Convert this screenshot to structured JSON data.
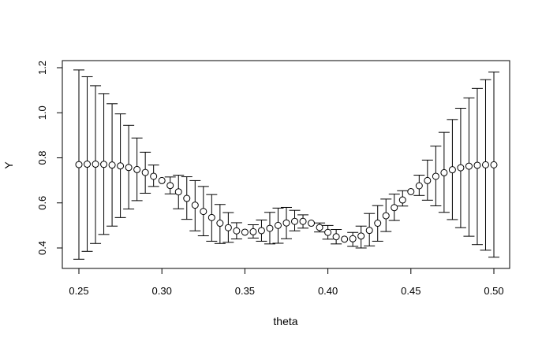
{
  "chart_data": {
    "type": "scatter",
    "title": "",
    "xlabel": "theta",
    "ylabel": "Y",
    "xlim": [
      0.25,
      0.5
    ],
    "ylim": [
      0.3,
      1.2
    ],
    "grid": false,
    "legend": "none",
    "xticks": [
      0.25,
      0.3,
      0.35,
      0.4,
      0.45,
      0.5
    ],
    "xtick_labels": [
      "0.25",
      "0.30",
      "0.35",
      "0.40",
      "0.45",
      "0.50"
    ],
    "yticks": [
      0.4,
      0.6,
      0.8,
      1.0,
      1.2
    ],
    "ytick_labels": [
      "0.4",
      "0.6",
      "0.8",
      "1.0",
      "1.2"
    ],
    "colors": {
      "marks": "#000000",
      "background": "#ffffff"
    },
    "points": [
      {
        "x": 0.25,
        "y": 0.77,
        "lo": 0.35,
        "hi": 1.19
      },
      {
        "x": 0.255,
        "y": 0.772,
        "lo": 0.385,
        "hi": 1.16
      },
      {
        "x": 0.26,
        "y": 0.772,
        "lo": 0.42,
        "hi": 1.12
      },
      {
        "x": 0.265,
        "y": 0.771,
        "lo": 0.46,
        "hi": 1.085
      },
      {
        "x": 0.27,
        "y": 0.768,
        "lo": 0.497,
        "hi": 1.04
      },
      {
        "x": 0.275,
        "y": 0.764,
        "lo": 0.535,
        "hi": 0.995
      },
      {
        "x": 0.28,
        "y": 0.757,
        "lo": 0.573,
        "hi": 0.944
      },
      {
        "x": 0.285,
        "y": 0.748,
        "lo": 0.61,
        "hi": 0.888
      },
      {
        "x": 0.29,
        "y": 0.735,
        "lo": 0.643,
        "hi": 0.825
      },
      {
        "x": 0.295,
        "y": 0.718,
        "lo": 0.673,
        "hi": 0.768
      },
      {
        "x": 0.3,
        "y": 0.699
      },
      {
        "x": 0.305,
        "y": 0.677,
        "lo": 0.64,
        "hi": 0.715
      },
      {
        "x": 0.31,
        "y": 0.649,
        "lo": 0.574,
        "hi": 0.723
      },
      {
        "x": 0.315,
        "y": 0.62,
        "lo": 0.527,
        "hi": 0.716
      },
      {
        "x": 0.32,
        "y": 0.59,
        "lo": 0.476,
        "hi": 0.699
      },
      {
        "x": 0.325,
        "y": 0.562,
        "lo": 0.454,
        "hi": 0.673
      },
      {
        "x": 0.33,
        "y": 0.535,
        "lo": 0.43,
        "hi": 0.637
      },
      {
        "x": 0.335,
        "y": 0.51,
        "lo": 0.42,
        "hi": 0.593
      },
      {
        "x": 0.34,
        "y": 0.49,
        "lo": 0.425,
        "hi": 0.557
      },
      {
        "x": 0.345,
        "y": 0.476,
        "lo": 0.44,
        "hi": 0.512
      },
      {
        "x": 0.35,
        "y": 0.47
      },
      {
        "x": 0.355,
        "y": 0.472,
        "lo": 0.444,
        "hi": 0.503
      },
      {
        "x": 0.36,
        "y": 0.477,
        "lo": 0.43,
        "hi": 0.524
      },
      {
        "x": 0.365,
        "y": 0.487,
        "lo": 0.418,
        "hi": 0.558
      },
      {
        "x": 0.37,
        "y": 0.5,
        "lo": 0.421,
        "hi": 0.577
      },
      {
        "x": 0.375,
        "y": 0.511,
        "lo": 0.441,
        "hi": 0.58
      },
      {
        "x": 0.38,
        "y": 0.518,
        "lo": 0.476,
        "hi": 0.567
      },
      {
        "x": 0.385,
        "y": 0.518,
        "lo": 0.488,
        "hi": 0.547
      },
      {
        "x": 0.39,
        "y": 0.51
      },
      {
        "x": 0.395,
        "y": 0.491,
        "lo": 0.471,
        "hi": 0.511
      },
      {
        "x": 0.4,
        "y": 0.469,
        "lo": 0.439,
        "hi": 0.5
      },
      {
        "x": 0.405,
        "y": 0.45,
        "lo": 0.418,
        "hi": 0.482
      },
      {
        "x": 0.41,
        "y": 0.439
      },
      {
        "x": 0.415,
        "y": 0.441,
        "lo": 0.407,
        "hi": 0.469
      },
      {
        "x": 0.42,
        "y": 0.453,
        "lo": 0.4,
        "hi": 0.497
      },
      {
        "x": 0.425,
        "y": 0.478,
        "lo": 0.409,
        "hi": 0.553
      },
      {
        "x": 0.43,
        "y": 0.51,
        "lo": 0.43,
        "hi": 0.588
      },
      {
        "x": 0.435,
        "y": 0.543,
        "lo": 0.473,
        "hi": 0.617
      },
      {
        "x": 0.44,
        "y": 0.579,
        "lo": 0.522,
        "hi": 0.639
      },
      {
        "x": 0.445,
        "y": 0.613,
        "lo": 0.586,
        "hi": 0.654
      },
      {
        "x": 0.45,
        "y": 0.65
      },
      {
        "x": 0.455,
        "y": 0.676,
        "lo": 0.633,
        "hi": 0.723
      },
      {
        "x": 0.46,
        "y": 0.699,
        "lo": 0.612,
        "hi": 0.79
      },
      {
        "x": 0.465,
        "y": 0.718,
        "lo": 0.587,
        "hi": 0.852
      },
      {
        "x": 0.47,
        "y": 0.734,
        "lo": 0.558,
        "hi": 0.913
      },
      {
        "x": 0.475,
        "y": 0.747,
        "lo": 0.526,
        "hi": 0.97
      },
      {
        "x": 0.48,
        "y": 0.756,
        "lo": 0.49,
        "hi": 1.02
      },
      {
        "x": 0.485,
        "y": 0.763,
        "lo": 0.452,
        "hi": 1.066
      },
      {
        "x": 0.49,
        "y": 0.767,
        "lo": 0.415,
        "hi": 1.108
      },
      {
        "x": 0.495,
        "y": 0.769,
        "lo": 0.39,
        "hi": 1.147
      },
      {
        "x": 0.5,
        "y": 0.769,
        "lo": 0.359,
        "hi": 1.181
      }
    ]
  }
}
